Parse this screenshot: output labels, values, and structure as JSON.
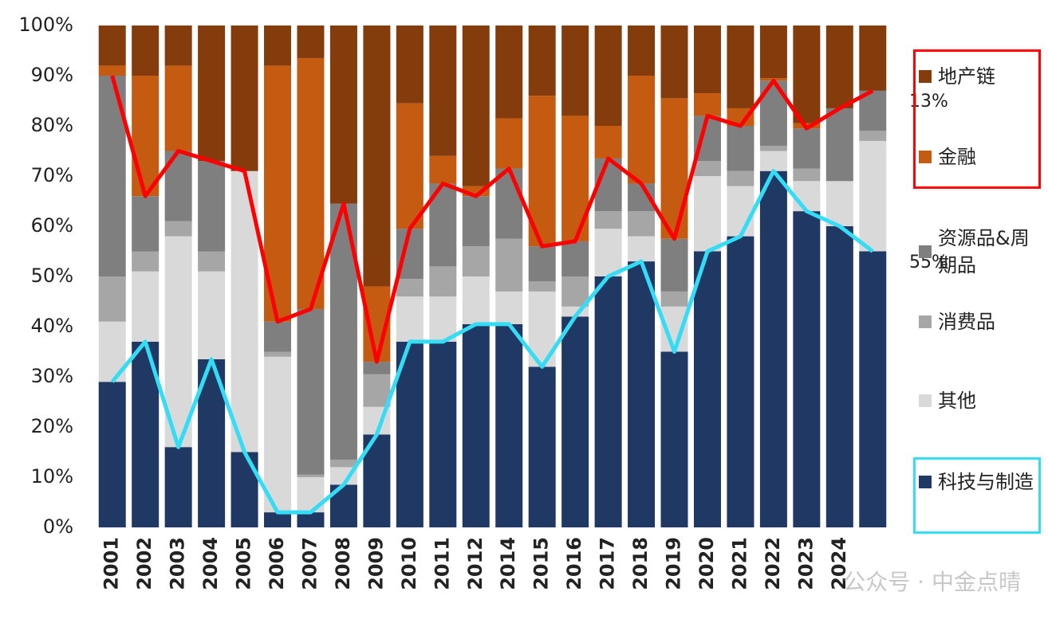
{
  "chart_data": {
    "type": "stacked_bar",
    "categories": [
      "2001",
      "2002",
      "2003",
      "2004",
      "2005",
      "2006",
      "2007",
      "2008",
      "2009",
      "2010",
      "2011",
      "2012",
      "2014",
      "2015",
      "2016",
      "2017",
      "2018",
      "2019",
      "2020",
      "2021",
      "2022",
      "2023",
      "2024",
      null
    ],
    "series": [
      {
        "name": "科技与制造",
        "color": "#1f3864",
        "line_color": "#33ddf5",
        "values": [
          29,
          37,
          16,
          33.5,
          15,
          3,
          3,
          8.5,
          18.5,
          37,
          37,
          40.5,
          40.5,
          32,
          42,
          50,
          53,
          35,
          55,
          58,
          71,
          63,
          60,
          55
        ]
      },
      {
        "name": "其他",
        "color": "#d9d9d9",
        "values": [
          12,
          14,
          42,
          17.5,
          56,
          31,
          7,
          3.5,
          5.5,
          9,
          9,
          9.5,
          6.5,
          15,
          2,
          9.5,
          5,
          9,
          15,
          10,
          4,
          6,
          9,
          22
        ]
      },
      {
        "name": "消费品",
        "color": "#a6a6a6",
        "values": [
          9,
          4,
          3,
          4,
          0,
          1,
          0.5,
          1.5,
          6.5,
          3.5,
          6,
          6,
          10.5,
          2,
          6,
          3.5,
          5,
          3,
          3,
          3,
          1,
          2.5,
          0,
          2
        ]
      },
      {
        "name": "资源品&周期品",
        "color": "#7f7f7f",
        "line_color": "#ff0000",
        "values": [
          40,
          11,
          14,
          18,
          0,
          6,
          33,
          51,
          2.5,
          10,
          16.5,
          10,
          14,
          7,
          7,
          10.5,
          5.5,
          10.5,
          9,
          9,
          13,
          8,
          14.5,
          8
        ]
      },
      {
        "name": "金融",
        "color": "#c55a11",
        "values": [
          2,
          24,
          17,
          0,
          0,
          51,
          50,
          0,
          15,
          25,
          5.5,
          2,
          10,
          30,
          25,
          6.5,
          21.5,
          28,
          4.5,
          3.5,
          0.5,
          1,
          0,
          0
        ]
      },
      {
        "name": "地产链",
        "color": "#843c0c",
        "values": [
          8,
          10,
          8,
          27,
          29,
          8,
          6.5,
          35.5,
          52,
          15.5,
          26,
          32,
          18.5,
          14,
          18,
          20,
          10,
          14.5,
          13.5,
          16.5,
          10.5,
          19.5,
          16.5,
          13
        ]
      }
    ],
    "ylim": [
      0,
      100
    ],
    "yticks": [
      {
        "value": 0,
        "label": "0%"
      },
      {
        "value": 10,
        "label": "10%"
      },
      {
        "value": 20,
        "label": "20%"
      },
      {
        "value": 30,
        "label": "30%"
      },
      {
        "value": 40,
        "label": "40%"
      },
      {
        "value": 50,
        "label": "50%"
      },
      {
        "value": 60,
        "label": "60%"
      },
      {
        "value": 70,
        "label": "70%"
      },
      {
        "value": 80,
        "label": "80%"
      },
      {
        "value": 90,
        "label": "90%"
      },
      {
        "value": 100,
        "label": "100%"
      }
    ],
    "annotations": [
      {
        "text": "13%"
      },
      {
        "text": "55%"
      }
    ],
    "watermark": "公众号 · 中金点晴"
  }
}
